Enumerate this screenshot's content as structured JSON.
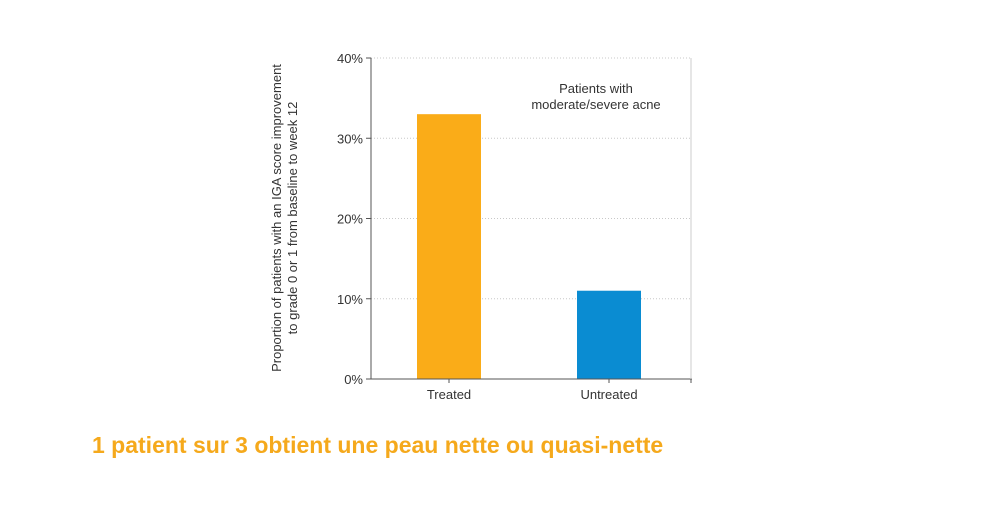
{
  "chart_data": {
    "type": "bar",
    "categories": [
      "Treated",
      "Untreated"
    ],
    "values": [
      33,
      11
    ],
    "ylabel_lines": [
      "Proportion of patients with an IGA score improvement",
      "to grade 0 or 1 from baseline to week 12"
    ],
    "ylim": [
      0,
      40
    ],
    "yticks": [
      "0%",
      "10%",
      "20%",
      "30%",
      "40%"
    ],
    "ytick_values": [
      0,
      10,
      20,
      30,
      40
    ],
    "annotation_lines": [
      "Patients with",
      "moderate/severe acne"
    ],
    "grid": true,
    "colors": [
      "#FAAC18",
      "#0A8CD2"
    ]
  },
  "caption": {
    "text": "1 patient sur 3 obtient une peau nette ou quasi-nette",
    "color": "#F5A91C"
  }
}
